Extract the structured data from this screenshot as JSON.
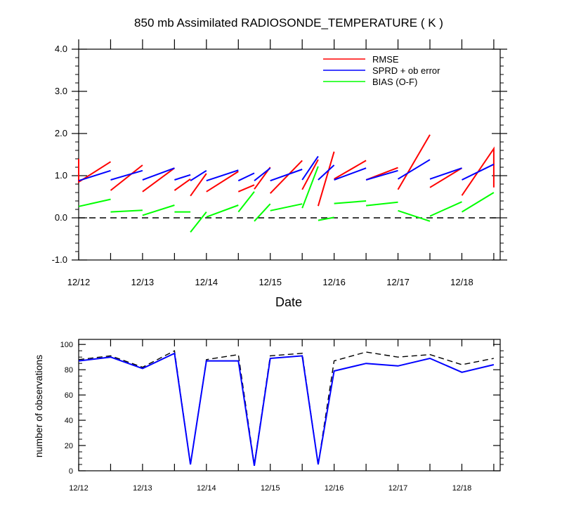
{
  "chart_data": [
    {
      "type": "line",
      "title": "850 mb Assimilated RADIOSONDE_TEMPERATURE ( K )",
      "xlabel": "Date",
      "ylabel": "",
      "x_tick_labels": [
        "12/12",
        "12/13",
        "12/14",
        "12/15",
        "12/16",
        "12/17",
        "12/18"
      ],
      "y_tick_labels": [
        "-1.0",
        "0.0",
        "1.0",
        "2.0",
        "3.0",
        "4.0"
      ],
      "ylim": [
        -1.0,
        4.0
      ],
      "xlim": [
        0,
        6.6
      ],
      "legend_position": "top-right",
      "reference_line": {
        "y": 0.0,
        "style": "dashed"
      },
      "series": [
        {
          "name": "RMSE",
          "color": "#ff0000",
          "segments": [
            [
              [
                0,
                1.4
              ],
              [
                0,
                0.85
              ],
              [
                0.5,
                1.33
              ]
            ],
            [
              [
                0.5,
                0.65
              ],
              [
                1.0,
                1.25
              ]
            ],
            [
              [
                1.0,
                0.62
              ],
              [
                1.5,
                1.18
              ]
            ],
            [
              [
                1.5,
                0.65
              ],
              [
                1.75,
                0.92
              ]
            ],
            [
              [
                1.75,
                0.52
              ],
              [
                2.0,
                1.05
              ]
            ],
            [
              [
                2.0,
                0.62
              ],
              [
                2.5,
                1.1
              ]
            ],
            [
              [
                2.5,
                0.62
              ],
              [
                2.75,
                0.78
              ]
            ],
            [
              [
                2.75,
                0.68
              ],
              [
                3.0,
                1.2
              ]
            ],
            [
              [
                3.0,
                0.58
              ],
              [
                3.5,
                1.36
              ]
            ],
            [
              [
                3.5,
                0.67
              ],
              [
                3.75,
                1.38
              ]
            ],
            [
              [
                3.75,
                0.28
              ],
              [
                4.0,
                1.57
              ]
            ],
            [
              [
                4.0,
                0.92
              ],
              [
                4.5,
                1.36
              ]
            ],
            [
              [
                4.5,
                0.9
              ],
              [
                5.0,
                1.19
              ]
            ],
            [
              [
                5.0,
                0.67
              ],
              [
                5.5,
                1.97
              ]
            ],
            [
              [
                5.5,
                0.72
              ],
              [
                6.0,
                1.18
              ]
            ],
            [
              [
                6.0,
                0.53
              ],
              [
                6.5,
                1.64
              ],
              [
                6.5,
                0.72
              ]
            ]
          ]
        },
        {
          "name": "SPRD + ob error",
          "color": "#0000ff",
          "segments": [
            [
              [
                0,
                0.88
              ],
              [
                0.5,
                1.12
              ]
            ],
            [
              [
                0.5,
                0.9
              ],
              [
                1.0,
                1.12
              ]
            ],
            [
              [
                1.0,
                0.9
              ],
              [
                1.5,
                1.18
              ]
            ],
            [
              [
                1.5,
                0.9
              ],
              [
                1.75,
                1.02
              ]
            ],
            [
              [
                1.75,
                0.88
              ],
              [
                2.0,
                1.12
              ]
            ],
            [
              [
                2.0,
                0.88
              ],
              [
                2.5,
                1.13
              ]
            ],
            [
              [
                2.5,
                0.88
              ],
              [
                2.75,
                1.06
              ]
            ],
            [
              [
                2.75,
                0.88
              ],
              [
                3.0,
                1.18
              ]
            ],
            [
              [
                3.0,
                0.88
              ],
              [
                3.5,
                1.15
              ]
            ],
            [
              [
                3.5,
                0.9
              ],
              [
                3.75,
                1.46
              ]
            ],
            [
              [
                3.75,
                0.9
              ],
              [
                4.0,
                1.25
              ]
            ],
            [
              [
                4.0,
                0.9
              ],
              [
                4.5,
                1.18
              ]
            ],
            [
              [
                4.5,
                0.9
              ],
              [
                5.0,
                1.12
              ]
            ],
            [
              [
                5.0,
                0.92
              ],
              [
                5.5,
                1.38
              ]
            ],
            [
              [
                5.5,
                0.92
              ],
              [
                6.0,
                1.18
              ]
            ],
            [
              [
                6.0,
                0.9
              ],
              [
                6.5,
                1.27
              ]
            ]
          ]
        },
        {
          "name": "BIAS (O-F)",
          "color": "#00ff00",
          "segments": [
            [
              [
                0,
                0.27
              ],
              [
                0.5,
                0.44
              ]
            ],
            [
              [
                0.5,
                0.14
              ],
              [
                1.0,
                0.18
              ]
            ],
            [
              [
                1.0,
                0.06
              ],
              [
                1.5,
                0.3
              ]
            ],
            [
              [
                1.5,
                0.14
              ],
              [
                1.75,
                0.14
              ]
            ],
            [
              [
                1.75,
                -0.34
              ],
              [
                2.0,
                0.14
              ]
            ],
            [
              [
                2.0,
                0.02
              ],
              [
                2.5,
                0.3
              ]
            ],
            [
              [
                2.5,
                0.14
              ],
              [
                2.75,
                0.62
              ]
            ],
            [
              [
                2.75,
                -0.08
              ],
              [
                3.0,
                0.33
              ]
            ],
            [
              [
                3.0,
                0.17
              ],
              [
                3.5,
                0.33
              ]
            ],
            [
              [
                3.5,
                0.23
              ],
              [
                3.75,
                1.22
              ]
            ],
            [
              [
                3.75,
                -0.06
              ],
              [
                4.0,
                0.01
              ]
            ],
            [
              [
                4.0,
                0.34
              ],
              [
                4.5,
                0.4
              ]
            ],
            [
              [
                4.5,
                0.29
              ],
              [
                5.0,
                0.37
              ]
            ],
            [
              [
                5.0,
                0.17
              ],
              [
                5.5,
                -0.08
              ]
            ],
            [
              [
                5.5,
                0.04
              ],
              [
                6.0,
                0.38
              ]
            ],
            [
              [
                6.0,
                0.14
              ],
              [
                6.5,
                0.6
              ]
            ]
          ]
        }
      ]
    },
    {
      "type": "line",
      "title": "",
      "xlabel": "",
      "ylabel": "number of observations",
      "x_tick_labels": [
        "12/12",
        "12/13",
        "12/14",
        "12/15",
        "12/16",
        "12/17",
        "12/18"
      ],
      "y_tick_labels": [
        "0",
        "20",
        "40",
        "60",
        "80",
        "100"
      ],
      "ylim": [
        0,
        100
      ],
      "xlim": [
        0,
        6.6
      ],
      "x": [
        0,
        0.5,
        1.0,
        1.5,
        1.75,
        2.0,
        2.5,
        2.75,
        3.0,
        3.5,
        3.75,
        4.0,
        4.5,
        5.0,
        5.5,
        6.0,
        6.5
      ],
      "series": [
        {
          "name": "",
          "style": "dashed",
          "color": "#000000",
          "values": [
            88,
            91,
            82,
            95,
            5,
            88,
            92,
            5,
            91,
            93,
            5,
            87,
            94,
            90,
            92,
            84,
            89
          ]
        },
        {
          "name": "",
          "style": "solid",
          "color": "#0000ff",
          "values": [
            87,
            90,
            81,
            93,
            5,
            87,
            87,
            4,
            89,
            91,
            5,
            79,
            85,
            83,
            89,
            78,
            84
          ]
        }
      ]
    }
  ]
}
